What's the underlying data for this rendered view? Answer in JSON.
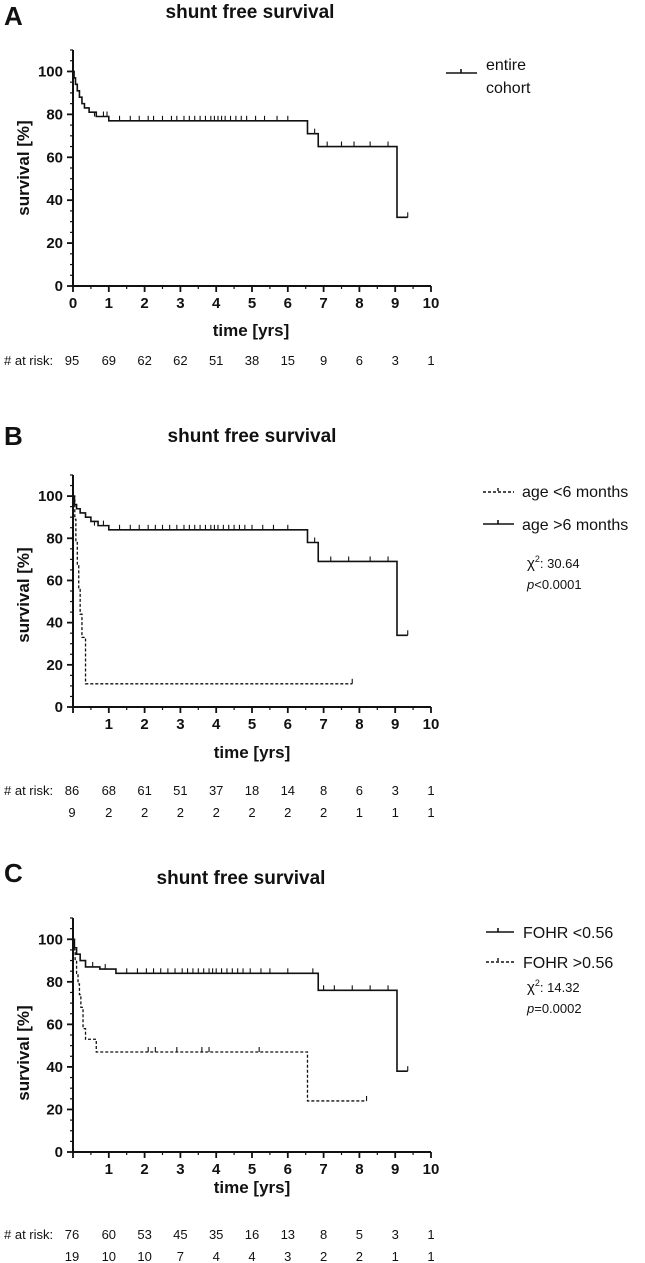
{
  "chart_data": [
    {
      "type": "line",
      "panel": "A",
      "title": "shunt free survival",
      "xlabel": "time [yrs]",
      "ylabel": "survival [%]",
      "xlim": [
        0,
        10
      ],
      "ylim": [
        0,
        110
      ],
      "xticks": [
        "0",
        "1",
        "2",
        "3",
        "4",
        "5",
        "6",
        "7",
        "8",
        "9",
        "10"
      ],
      "yticks": [
        "0",
        "20",
        "40",
        "60",
        "80",
        "100"
      ],
      "legend_position": "top-right",
      "grid": false,
      "series": [
        {
          "name": "entire cohort",
          "style": "solid",
          "steps": [
            [
              0,
              100
            ],
            [
              0.03,
              97
            ],
            [
              0.07,
              94
            ],
            [
              0.12,
              91
            ],
            [
              0.18,
              88
            ],
            [
              0.25,
              85
            ],
            [
              0.32,
              83
            ],
            [
              0.45,
              81
            ],
            [
              0.65,
              79
            ],
            [
              1.0,
              77
            ],
            [
              6.55,
              71
            ],
            [
              6.85,
              65
            ],
            [
              9.05,
              32
            ],
            [
              9.35,
              32
            ]
          ],
          "censored": [
            [
              0.6,
              79
            ],
            [
              0.85,
              79
            ],
            [
              0.95,
              79
            ],
            [
              1.3,
              77
            ],
            [
              1.6,
              77
            ],
            [
              1.85,
              77
            ],
            [
              2.1,
              77
            ],
            [
              2.25,
              77
            ],
            [
              2.5,
              77
            ],
            [
              2.75,
              77
            ],
            [
              2.9,
              77
            ],
            [
              3.1,
              77
            ],
            [
              3.25,
              77
            ],
            [
              3.4,
              77
            ],
            [
              3.55,
              77
            ],
            [
              3.7,
              77
            ],
            [
              3.85,
              77
            ],
            [
              3.95,
              77
            ],
            [
              4.05,
              77
            ],
            [
              4.15,
              77
            ],
            [
              4.25,
              77
            ],
            [
              4.4,
              77
            ],
            [
              4.55,
              77
            ],
            [
              4.7,
              77
            ],
            [
              4.85,
              77
            ],
            [
              5.1,
              77
            ],
            [
              5.35,
              77
            ],
            [
              5.7,
              77
            ],
            [
              6.0,
              77
            ],
            [
              6.75,
              71
            ],
            [
              7.1,
              65
            ],
            [
              7.5,
              65
            ],
            [
              7.85,
              65
            ],
            [
              8.3,
              65
            ],
            [
              8.8,
              65
            ],
            [
              9.35,
              32
            ]
          ]
        }
      ],
      "risk_label": "# at risk:",
      "at_risk": [
        [
          "95",
          "69",
          "62",
          "62",
          "51",
          "38",
          "15",
          "9",
          "6",
          "3",
          "1"
        ]
      ]
    },
    {
      "type": "line",
      "panel": "B",
      "title": "shunt free survival",
      "xlabel": "time [yrs]",
      "ylabel": "survival [%]",
      "xlim": [
        0,
        10
      ],
      "ylim": [
        0,
        110
      ],
      "xticks": [
        "1",
        "2",
        "3",
        "4",
        "5",
        "6",
        "7",
        "8",
        "9",
        "10"
      ],
      "yticks": [
        "0",
        "20",
        "40",
        "60",
        "80",
        "100"
      ],
      "legend_position": "top-right",
      "grid": false,
      "stats": {
        "chi_label": "χ",
        "chi_sup": "2",
        "chi_value": ": 30.64",
        "p_label": "p",
        "p_value": "<0.0001"
      },
      "series": [
        {
          "name": "age <6 months",
          "style": "dashed",
          "steps": [
            [
              0,
              100
            ],
            [
              0.05,
              89
            ],
            [
              0.08,
              78
            ],
            [
              0.12,
              67
            ],
            [
              0.16,
              56
            ],
            [
              0.2,
              44
            ],
            [
              0.25,
              33
            ],
            [
              0.35,
              11
            ],
            [
              7.8,
              11
            ]
          ],
          "censored": [
            [
              7.8,
              11
            ]
          ]
        },
        {
          "name": "age >6 months",
          "style": "solid",
          "steps": [
            [
              0,
              100
            ],
            [
              0.04,
              96
            ],
            [
              0.1,
              94
            ],
            [
              0.2,
              92
            ],
            [
              0.35,
              90
            ],
            [
              0.5,
              88
            ],
            [
              0.7,
              86
            ],
            [
              1.0,
              84
            ],
            [
              6.55,
              78
            ],
            [
              6.85,
              69
            ],
            [
              9.05,
              34
            ],
            [
              9.35,
              34
            ]
          ],
          "censored": [
            [
              0.6,
              86
            ],
            [
              0.85,
              86
            ],
            [
              1.3,
              84
            ],
            [
              1.6,
              84
            ],
            [
              1.85,
              84
            ],
            [
              2.1,
              84
            ],
            [
              2.3,
              84
            ],
            [
              2.5,
              84
            ],
            [
              2.7,
              84
            ],
            [
              2.9,
              84
            ],
            [
              3.1,
              84
            ],
            [
              3.25,
              84
            ],
            [
              3.4,
              84
            ],
            [
              3.55,
              84
            ],
            [
              3.7,
              84
            ],
            [
              3.85,
              84
            ],
            [
              3.95,
              84
            ],
            [
              4.05,
              84
            ],
            [
              4.2,
              84
            ],
            [
              4.35,
              84
            ],
            [
              4.5,
              84
            ],
            [
              4.65,
              84
            ],
            [
              4.8,
              84
            ],
            [
              5.0,
              84
            ],
            [
              5.3,
              84
            ],
            [
              5.6,
              84
            ],
            [
              6.0,
              84
            ],
            [
              6.75,
              78
            ],
            [
              7.2,
              69
            ],
            [
              7.7,
              69
            ],
            [
              8.3,
              69
            ],
            [
              8.8,
              69
            ],
            [
              9.35,
              34
            ]
          ]
        }
      ],
      "risk_label": "# at risk:",
      "at_risk": [
        [
          "86",
          "68",
          "61",
          "51",
          "37",
          "18",
          "14",
          "8",
          "6",
          "3",
          "1"
        ],
        [
          "9",
          "2",
          "2",
          "2",
          "2",
          "2",
          "2",
          "2",
          "1",
          "1",
          "1"
        ]
      ]
    },
    {
      "type": "line",
      "panel": "C",
      "title": "shunt free survival",
      "xlabel": "time [yrs]",
      "ylabel": "survival [%]",
      "xlim": [
        0,
        10
      ],
      "ylim": [
        0,
        110
      ],
      "xticks": [
        "1",
        "2",
        "3",
        "4",
        "5",
        "6",
        "7",
        "8",
        "9",
        "10"
      ],
      "yticks": [
        "0",
        "20",
        "40",
        "60",
        "80",
        "100"
      ],
      "legend_position": "top-right",
      "grid": false,
      "stats": {
        "chi_label": "χ",
        "chi_sup": "2",
        "chi_value": ": 14.32",
        "p_label": "p",
        "p_value": "=0.0002"
      },
      "series": [
        {
          "name": "FOHR <0.56",
          "style": "solid",
          "steps": [
            [
              0,
              100
            ],
            [
              0.04,
              96
            ],
            [
              0.1,
              93
            ],
            [
              0.2,
              90
            ],
            [
              0.35,
              87
            ],
            [
              0.75,
              86
            ],
            [
              1.2,
              84
            ],
            [
              6.85,
              76
            ],
            [
              9.05,
              38
            ],
            [
              9.35,
              38
            ]
          ],
          "censored": [
            [
              0.55,
              87
            ],
            [
              0.9,
              86
            ],
            [
              1.5,
              84
            ],
            [
              1.8,
              84
            ],
            [
              2.05,
              84
            ],
            [
              2.25,
              84
            ],
            [
              2.45,
              84
            ],
            [
              2.65,
              84
            ],
            [
              2.85,
              84
            ],
            [
              3.05,
              84
            ],
            [
              3.2,
              84
            ],
            [
              3.35,
              84
            ],
            [
              3.5,
              84
            ],
            [
              3.65,
              84
            ],
            [
              3.8,
              84
            ],
            [
              3.9,
              84
            ],
            [
              4.0,
              84
            ],
            [
              4.15,
              84
            ],
            [
              4.3,
              84
            ],
            [
              4.45,
              84
            ],
            [
              4.6,
              84
            ],
            [
              4.75,
              84
            ],
            [
              4.95,
              84
            ],
            [
              5.25,
              84
            ],
            [
              5.5,
              84
            ],
            [
              6.0,
              84
            ],
            [
              6.7,
              84
            ],
            [
              7.0,
              76
            ],
            [
              7.3,
              76
            ],
            [
              7.8,
              76
            ],
            [
              8.3,
              76
            ],
            [
              8.8,
              76
            ],
            [
              9.35,
              38
            ]
          ]
        },
        {
          "name": "FOHR >0.56",
          "style": "dashed",
          "steps": [
            [
              0,
              100
            ],
            [
              0.03,
              95
            ],
            [
              0.06,
              90
            ],
            [
              0.1,
              84
            ],
            [
              0.14,
              79
            ],
            [
              0.18,
              74
            ],
            [
              0.22,
              68
            ],
            [
              0.28,
              58
            ],
            [
              0.35,
              53
            ],
            [
              0.65,
              47
            ],
            [
              6.55,
              24
            ],
            [
              8.2,
              24
            ]
          ],
          "censored": [
            [
              2.1,
              47
            ],
            [
              2.3,
              47
            ],
            [
              2.9,
              47
            ],
            [
              3.6,
              47
            ],
            [
              3.8,
              47
            ],
            [
              5.2,
              47
            ],
            [
              8.2,
              24
            ]
          ]
        }
      ],
      "risk_label": "# at risk:",
      "at_risk": [
        [
          "76",
          "60",
          "53",
          "45",
          "35",
          "16",
          "13",
          "8",
          "5",
          "3",
          "1"
        ],
        [
          "19",
          "10",
          "10",
          "7",
          "4",
          "4",
          "3",
          "2",
          "2",
          "1",
          "1"
        ]
      ]
    }
  ]
}
